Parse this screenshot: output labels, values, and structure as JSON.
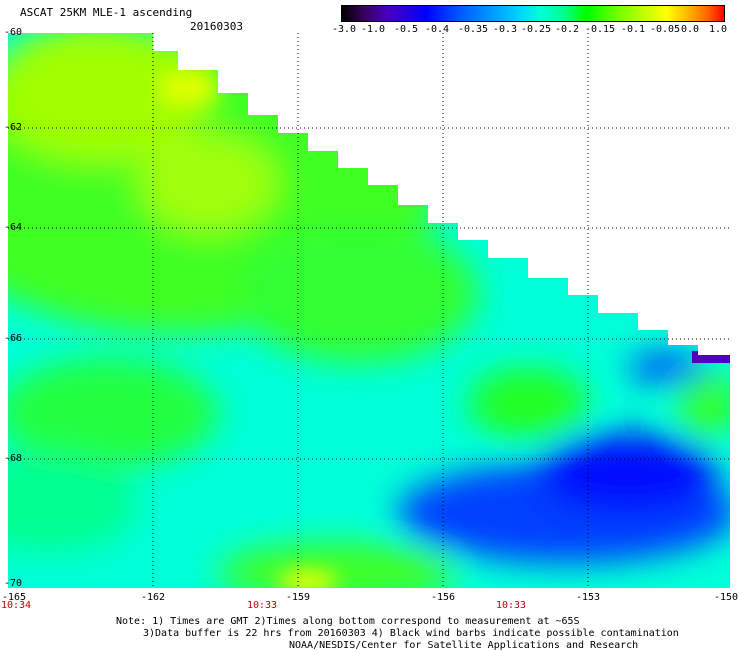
{
  "header": {
    "title": "ASCAT 25KM MLE-1 ascending",
    "date": "20160303"
  },
  "colorbar": {
    "labels": [
      "-3.0",
      "-1.0",
      "-0.5",
      "-0.4",
      "-0.35",
      "-0.3",
      "-0.25",
      "-0.2",
      "-0.15",
      "-0.1",
      "-0.05",
      "0.0",
      "1.0"
    ]
  },
  "axes": {
    "lat_labels": [
      "-60",
      "-62",
      "-64",
      "-66",
      "-68",
      "-70"
    ],
    "lon_labels": [
      "-165",
      "-162",
      "-159",
      "-156",
      "-153",
      "-150"
    ],
    "time_labels": [
      "10:34",
      "10:33",
      "10:33"
    ]
  },
  "notes": {
    "line1": "Note: 1) Times are GMT 2)Times along bottom correspond to measurement at ~65S",
    "line2": "3)Data buffer is 22 hrs from 20160303 4) Black wind barbs indicate possible contamination",
    "line3": "NOAA/NESDIS/Center for Satellite Applications and Research"
  },
  "colors": {
    "land_blue": "#0000ff",
    "cyan": "#00ffff",
    "green": "#00ff00",
    "yellow": "#ffff00",
    "purple": "#5000c0"
  }
}
